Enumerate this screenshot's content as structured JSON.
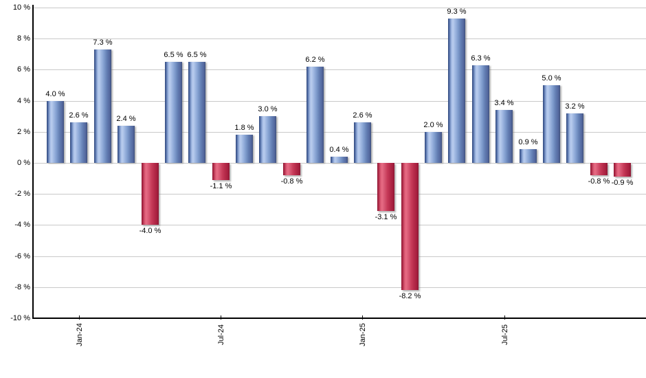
{
  "chart_data": {
    "type": "bar",
    "unit": "%",
    "values": [
      4.0,
      2.6,
      7.3,
      2.4,
      -4.0,
      6.5,
      6.5,
      -1.1,
      1.8,
      3.0,
      -0.8,
      6.2,
      0.4,
      2.6,
      -3.1,
      -8.2,
      2.0,
      9.3,
      6.3,
      3.4,
      0.9,
      5.0,
      3.2,
      -0.8,
      -0.9
    ],
    "bar_labels": [
      "4.0 %",
      "2.6 %",
      "7.3 %",
      "2.4 %",
      "-4.0 %",
      "6.5 %",
      "6.5 %",
      "-1.1 %",
      "1.8 %",
      "3.0 %",
      "-0.8 %",
      "6.2 %",
      "0.4 %",
      "2.6 %",
      "-3.1 %",
      "-8.2 %",
      "2.0 %",
      "9.3 %",
      "6.3 %",
      "3.4 %",
      "0.9 %",
      "5.0 %",
      "3.2 %",
      "-0.8 %",
      "-0.9 %"
    ],
    "x_ticks": [
      {
        "label": "Jan-24",
        "bar_index": 1
      },
      {
        "label": "Jul-24",
        "bar_index": 7
      },
      {
        "label": "Jan-25",
        "bar_index": 13
      },
      {
        "label": "Jul-25",
        "bar_index": 19
      }
    ],
    "y_ticks": [
      {
        "label": "10 %",
        "value": 10
      },
      {
        "label": "8 %",
        "value": 8
      },
      {
        "label": "6 %",
        "value": 6
      },
      {
        "label": "4 %",
        "value": 4
      },
      {
        "label": "2 %",
        "value": 2
      },
      {
        "label": "0 %",
        "value": 0
      },
      {
        "label": "-2 %",
        "value": -2
      },
      {
        "label": "-4 %",
        "value": -4
      },
      {
        "label": "-6 %",
        "value": -6
      },
      {
        "label": "-8 %",
        "value": -8
      },
      {
        "label": "-10 %",
        "value": -10
      }
    ],
    "ylim": [
      -10,
      10
    ],
    "grid": true,
    "legend_position": "none",
    "positive_color": "#7f9ccd",
    "negative_color": "#c73b59",
    "axis_color": "#000000",
    "gridline_color": "#c9c9c9"
  }
}
